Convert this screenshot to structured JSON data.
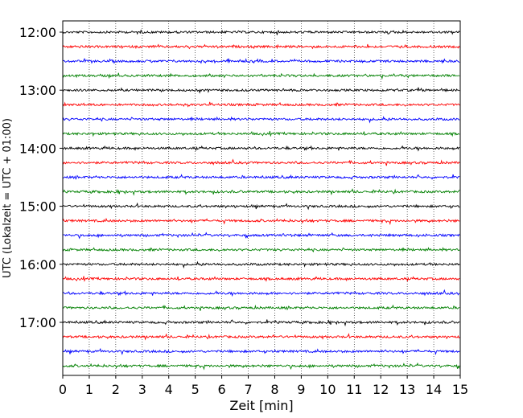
{
  "chart_data": {
    "type": "line",
    "chart_kind": "helicorder",
    "xlabel": "Zeit  [min]",
    "ylabel": "UTC (Lokalzeit = UTC + 01:00)",
    "xlim": [
      0,
      15
    ],
    "x_ticks": [
      "0",
      "1",
      "2",
      "3",
      "4",
      "5",
      "6",
      "7",
      "8",
      "9",
      "10",
      "11",
      "12",
      "13",
      "14",
      "15"
    ],
    "y_ticks": [
      "12:00",
      "13:00",
      "14:00",
      "15:00",
      "16:00",
      "17:00"
    ],
    "grid": "vertical dotted lines at each minute",
    "trace_colors": [
      "#000000",
      "#ff0000",
      "#0000ff",
      "#008000"
    ],
    "rows": [
      {
        "start": "12:00",
        "color": "#000000"
      },
      {
        "start": "12:15",
        "color": "#ff0000"
      },
      {
        "start": "12:30",
        "color": "#0000ff"
      },
      {
        "start": "12:45",
        "color": "#008000"
      },
      {
        "start": "13:00",
        "color": "#000000"
      },
      {
        "start": "13:15",
        "color": "#ff0000"
      },
      {
        "start": "13:30",
        "color": "#0000ff"
      },
      {
        "start": "13:45",
        "color": "#008000"
      },
      {
        "start": "14:00",
        "color": "#000000"
      },
      {
        "start": "14:15",
        "color": "#ff0000"
      },
      {
        "start": "14:30",
        "color": "#0000ff"
      },
      {
        "start": "14:45",
        "color": "#008000"
      },
      {
        "start": "15:00",
        "color": "#000000"
      },
      {
        "start": "15:15",
        "color": "#ff0000"
      },
      {
        "start": "15:30",
        "color": "#0000ff"
      },
      {
        "start": "15:45",
        "color": "#008000"
      },
      {
        "start": "16:00",
        "color": "#000000"
      },
      {
        "start": "16:15",
        "color": "#ff0000"
      },
      {
        "start": "16:30",
        "color": "#0000ff"
      },
      {
        "start": "16:45",
        "color": "#008000"
      },
      {
        "start": "17:00",
        "color": "#000000"
      },
      {
        "start": "17:15",
        "color": "#ff0000"
      },
      {
        "start": "17:30",
        "color": "#0000ff"
      },
      {
        "start": "17:45",
        "color": "#008000"
      }
    ]
  }
}
